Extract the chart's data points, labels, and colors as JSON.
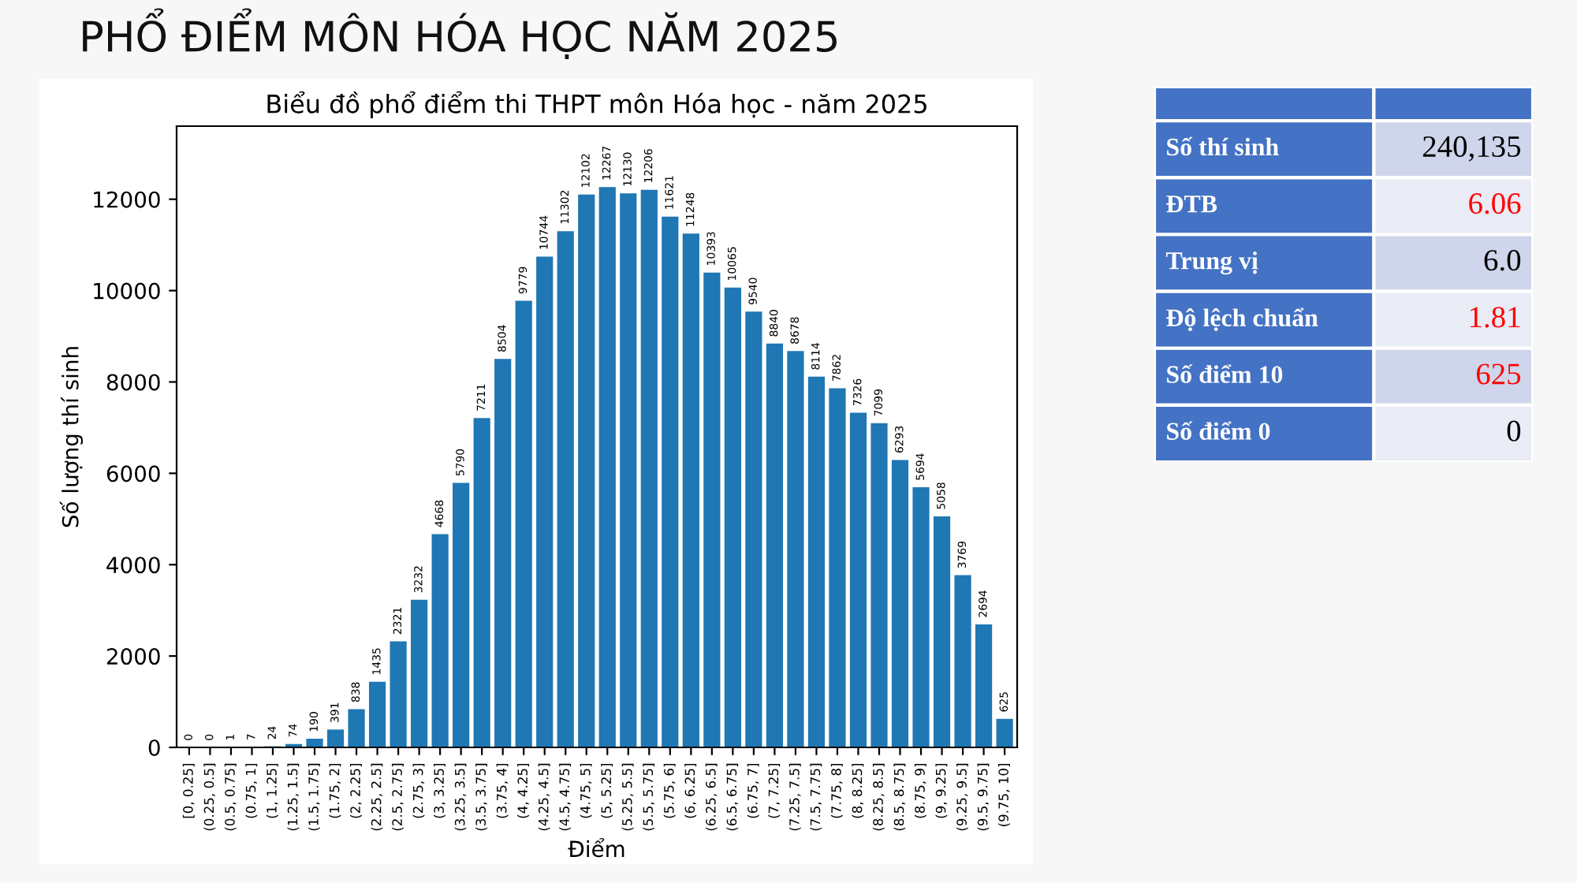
{
  "chart_data": [
    {
      "type": "bar",
      "title": "PHỔ ĐIỂM MÔN HÓA HỌC NĂM 2025",
      "subtitle": "Biểu đồ phổ điểm thi THPT môn Hóa học - năm 2025",
      "xlabel": "Điểm",
      "ylabel": "Số lượng thí sinh",
      "categories": [
        "[0, 0.25]",
        "(0.25, 0.5]",
        "(0.5, 0.75]",
        "(0.75, 1]",
        "(1, 1.25]",
        "(1.25, 1.5]",
        "(1.5, 1.75]",
        "(1.75, 2]",
        "(2, 2.25]",
        "(2.25, 2.5]",
        "(2.5, 2.75]",
        "(2.75, 3]",
        "(3, 3.25]",
        "(3.25, 3.5]",
        "(3.5, 3.75]",
        "(3.75, 4]",
        "(4, 4.25]",
        "(4.25, 4.5]",
        "(4.5, 4.75]",
        "(4.75, 5]",
        "(5, 5.25]",
        "(5.25, 5.5]",
        "(5.5, 5.75]",
        "(5.75, 6]",
        "(6, 6.25]",
        "(6.25, 6.5]",
        "(6.5, 6.75]",
        "(6.75, 7]",
        "(7, 7.25]",
        "(7.25, 7.5]",
        "(7.5, 7.75]",
        "(7.75, 8]",
        "(8, 8.25]",
        "(8.25, 8.5]",
        "(8.5, 8.75]",
        "(8.75, 9]",
        "(9, 9.25]",
        "(9.25, 9.5]",
        "(9.5, 9.75]",
        "(9.75, 10]"
      ],
      "values": [
        0,
        0,
        1,
        7,
        24,
        74,
        190,
        391,
        838,
        1435,
        2321,
        3232,
        4668,
        5790,
        7211,
        8504,
        9779,
        10744,
        11302,
        12102,
        12267,
        12130,
        12206,
        11621,
        11248,
        10393,
        10065,
        9540,
        8840,
        8678,
        8114,
        7862,
        7326,
        7099,
        6293,
        5694,
        5058,
        3769,
        2694,
        625
      ],
      "color": "#1f77b4",
      "ylim": [
        0,
        13600
      ],
      "yticks": [
        0,
        2000,
        4000,
        6000,
        8000,
        10000,
        12000
      ],
      "data_labels": true,
      "grid": false,
      "legend": false
    },
    {
      "type": "other",
      "categories": [
        "Số thí sinh",
        "ĐTB",
        "Trung vị",
        "Độ lệch chuẩn",
        "Số điểm 10",
        "Số điểm 0"
      ],
      "value_labels": [
        "240,135",
        "6.06",
        "6.0",
        "1.81",
        "625",
        "0"
      ]
    }
  ]
}
